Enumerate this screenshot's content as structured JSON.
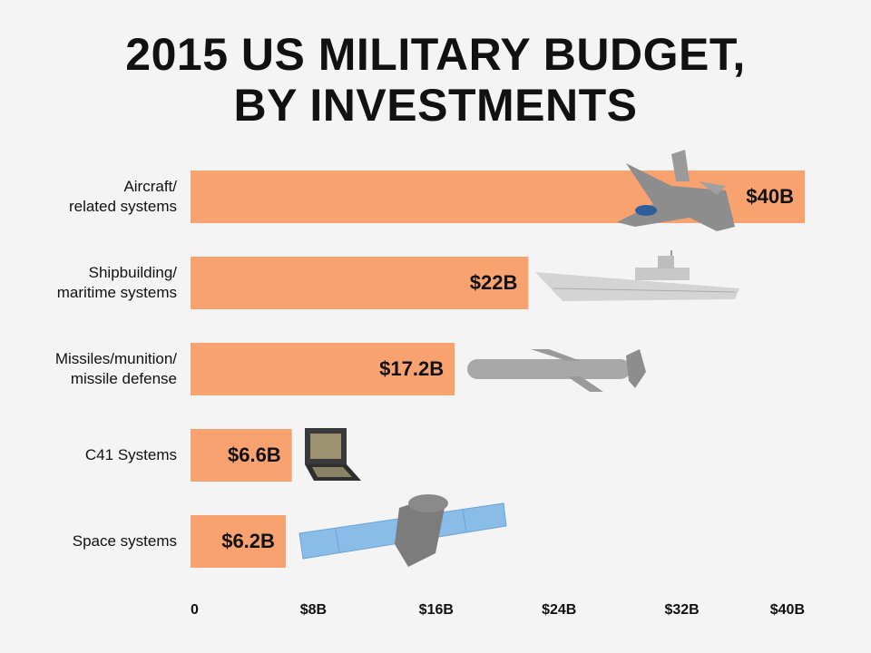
{
  "chart_data": {
    "type": "barh",
    "title": "2015 US MILITARY BUDGET,\nBY INVESTMENTS",
    "categories": [
      "Aircraft/\nrelated systems",
      "Shipbuilding/\nmaritime systems",
      "Missiles/munition/\nmissile defense",
      "C41 Systems",
      "Space systems"
    ],
    "values": [
      40,
      22,
      17.2,
      6.6,
      6.2
    ],
    "value_labels": [
      "$40B",
      "$22B",
      "$17.2B",
      "$6.6B",
      "$6.2B"
    ],
    "color": "#f8a270",
    "xlim": [
      0,
      40
    ],
    "xticks": [
      0,
      {
        "value": 8,
        "label": "$8B"
      },
      {
        "value": 16,
        "label": "$16B"
      },
      {
        "value": 24,
        "label": "$24B"
      },
      {
        "value": 32,
        "label": "$32B"
      },
      {
        "value": 40,
        "label": "$40B"
      }
    ],
    "grid": false
  }
}
